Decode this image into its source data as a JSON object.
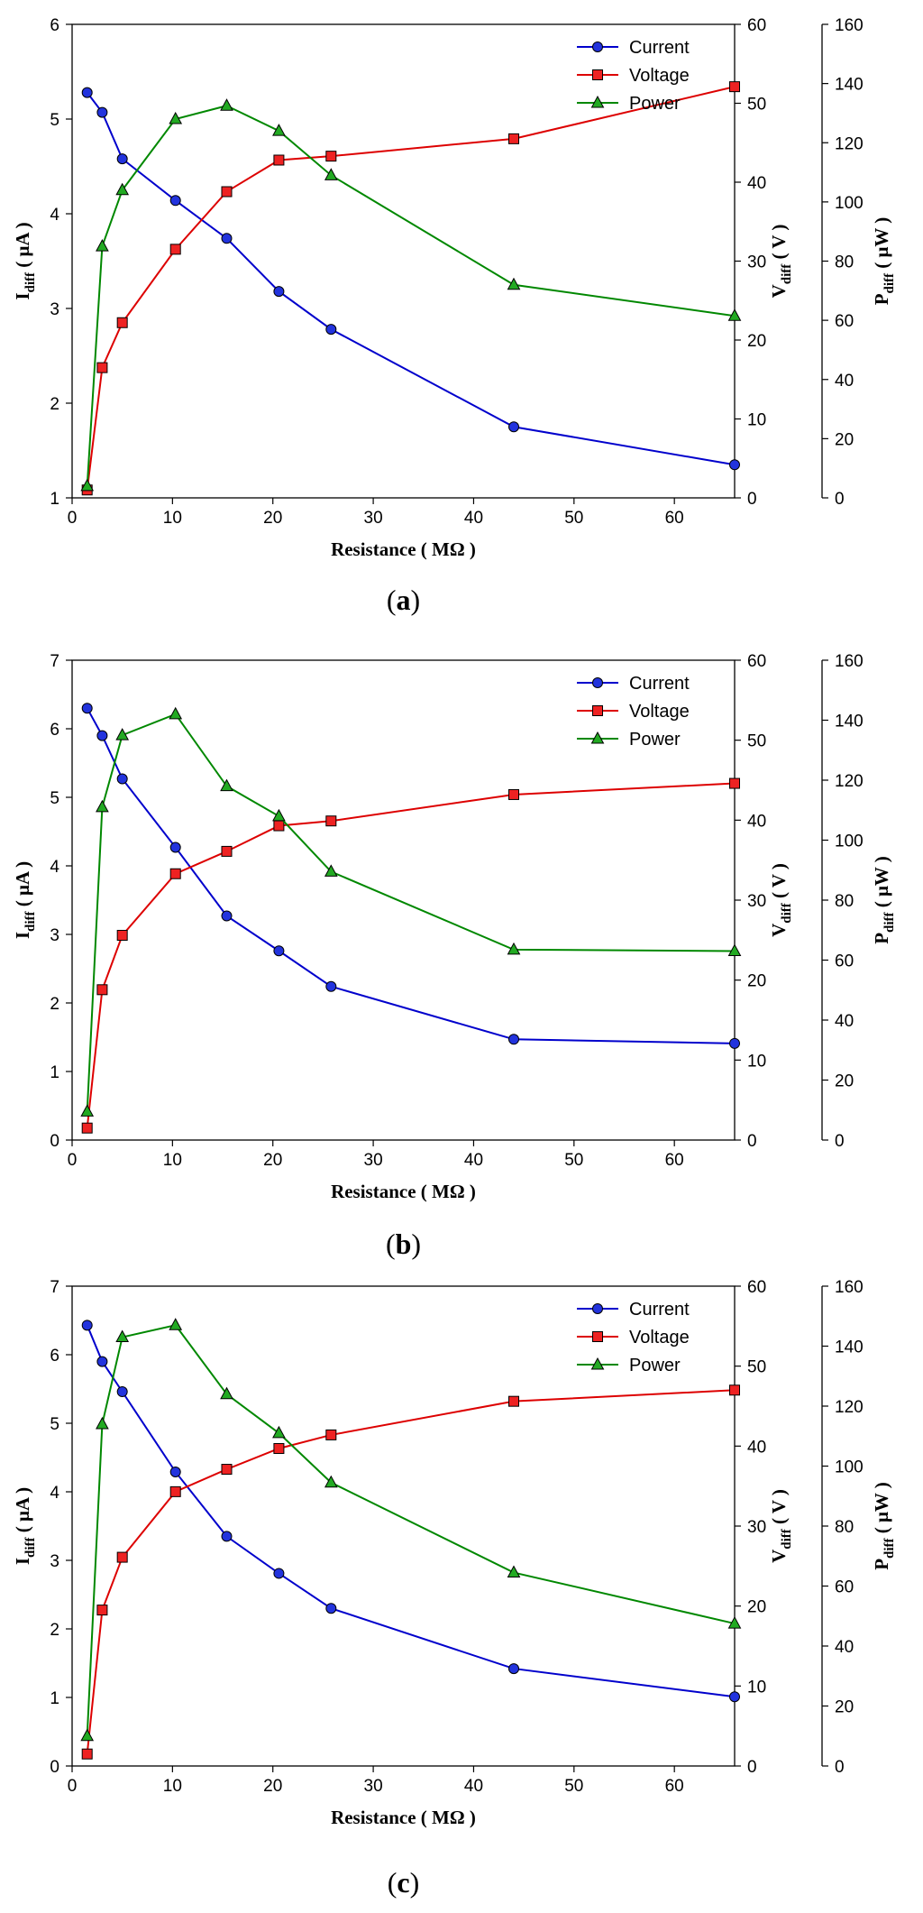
{
  "chart_data": [
    {
      "type": "line",
      "panel_label": "a",
      "x": [
        1.5,
        3,
        5,
        10.3,
        15.4,
        20.6,
        25.8,
        44,
        66
      ],
      "xlim": [
        0,
        66
      ],
      "xticks": [
        0,
        10,
        20,
        30,
        40,
        50,
        60
      ],
      "xlabel": "Resistance ( MΩ )",
      "left_axis": {
        "label_main": "I",
        "label_sub": "diff",
        "label_unit": " ( μA )",
        "lim": [
          1,
          6
        ],
        "ticks": [
          1,
          2,
          3,
          4,
          5,
          6
        ]
      },
      "right_axis": {
        "label_main": "V",
        "label_sub": "diff",
        "label_unit": " ( V )",
        "lim": [
          0,
          60
        ],
        "ticks": [
          0,
          10,
          20,
          30,
          40,
          50,
          60
        ]
      },
      "right_axis2": {
        "label_main": "P",
        "label_sub": "diff",
        "label_unit": " ( μW )",
        "lim": [
          0,
          160
        ],
        "ticks": [
          0,
          20,
          40,
          60,
          80,
          100,
          120,
          140,
          160
        ]
      },
      "series": [
        {
          "name": "Current",
          "axis": "left",
          "color": "#0000cc",
          "marker": "circle",
          "values": [
            5.28,
            5.07,
            4.58,
            4.14,
            3.74,
            3.18,
            2.78,
            1.75,
            1.35
          ]
        },
        {
          "name": "Voltage",
          "axis": "right",
          "color": "#dd0000",
          "marker": "square",
          "values": [
            1,
            16.5,
            22.2,
            31.5,
            38.8,
            42.8,
            43.3,
            45.5,
            52.1
          ]
        },
        {
          "name": "Power",
          "axis": "right2",
          "color": "#008800",
          "marker": "triangle",
          "values": [
            4,
            85,
            104,
            128,
            132.5,
            124,
            109,
            72,
            61.5
          ]
        }
      ]
    },
    {
      "type": "line",
      "panel_label": "b",
      "x": [
        1.5,
        3,
        5,
        10.3,
        15.4,
        20.6,
        25.8,
        44,
        66
      ],
      "xlim": [
        0,
        66
      ],
      "xticks": [
        0,
        10,
        20,
        30,
        40,
        50,
        60
      ],
      "xlabel": "Resistance ( MΩ )",
      "left_axis": {
        "label_main": "I",
        "label_sub": "diff",
        "label_unit": " ( μA )",
        "lim": [
          0,
          7
        ],
        "ticks": [
          0,
          1,
          2,
          3,
          4,
          5,
          6,
          7
        ]
      },
      "right_axis": {
        "label_main": "V",
        "label_sub": "diff",
        "label_unit": " ( V )",
        "lim": [
          0,
          60
        ],
        "ticks": [
          0,
          10,
          20,
          30,
          40,
          50,
          60
        ]
      },
      "right_axis2": {
        "label_main": "P",
        "label_sub": "diff",
        "label_unit": " ( μW )",
        "lim": [
          0,
          160
        ],
        "ticks": [
          0,
          20,
          40,
          60,
          80,
          100,
          120,
          140,
          160
        ]
      },
      "series": [
        {
          "name": "Current",
          "axis": "left",
          "color": "#0000cc",
          "marker": "circle",
          "values": [
            6.3,
            5.9,
            5.27,
            4.27,
            3.27,
            2.76,
            2.24,
            1.47,
            1.41
          ]
        },
        {
          "name": "Voltage",
          "axis": "right",
          "color": "#dd0000",
          "marker": "square",
          "values": [
            1.5,
            18.8,
            25.6,
            33.3,
            36.1,
            39.3,
            39.9,
            43.2,
            44.6
          ]
        },
        {
          "name": "Power",
          "axis": "right2",
          "color": "#008800",
          "marker": "triangle",
          "values": [
            9.5,
            111,
            135,
            142,
            118,
            108,
            89.5,
            63.5,
            63
          ]
        }
      ]
    },
    {
      "type": "line",
      "panel_label": "c",
      "x": [
        1.5,
        3,
        5,
        10.3,
        15.4,
        20.6,
        25.8,
        44,
        66
      ],
      "xlim": [
        0,
        66
      ],
      "xticks": [
        0,
        10,
        20,
        30,
        40,
        50,
        60
      ],
      "xlabel": "Resistance ( MΩ )",
      "left_axis": {
        "label_main": "I",
        "label_sub": "diff",
        "label_unit": " ( μA )",
        "lim": [
          0,
          7
        ],
        "ticks": [
          0,
          1,
          2,
          3,
          4,
          5,
          6,
          7
        ]
      },
      "right_axis": {
        "label_main": "V",
        "label_sub": "diff",
        "label_unit": " ( V )",
        "lim": [
          0,
          60
        ],
        "ticks": [
          0,
          10,
          20,
          30,
          40,
          50,
          60
        ]
      },
      "right_axis2": {
        "label_main": "P",
        "label_sub": "diff",
        "label_unit": " ( μW )",
        "lim": [
          0,
          160
        ],
        "ticks": [
          0,
          20,
          40,
          60,
          80,
          100,
          120,
          140,
          160
        ]
      },
      "series": [
        {
          "name": "Current",
          "axis": "left",
          "color": "#0000cc",
          "marker": "circle",
          "values": [
            6.43,
            5.9,
            5.46,
            4.29,
            3.35,
            2.81,
            2.3,
            1.42,
            1.01
          ]
        },
        {
          "name": "Voltage",
          "axis": "right",
          "color": "#dd0000",
          "marker": "square",
          "values": [
            1.5,
            19.5,
            26.1,
            34.3,
            37.1,
            39.7,
            41.4,
            45.6,
            47
          ]
        },
        {
          "name": "Power",
          "axis": "right2",
          "color": "#008800",
          "marker": "triangle",
          "values": [
            10,
            114,
            143,
            147,
            124,
            111,
            94.5,
            64.5,
            47.5
          ]
        }
      ]
    }
  ]
}
